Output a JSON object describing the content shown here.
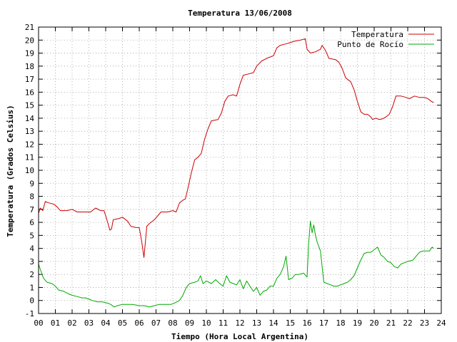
{
  "chart_data": {
    "type": "line",
    "title": "Temperatura 13/06/2008",
    "xlabel": "Tiempo (Hora Local Argentina)",
    "ylabel": "Temperatura (Grados Celsius)",
    "xlim": [
      0,
      24
    ],
    "ylim": [
      -1,
      21
    ],
    "x_ticks": [
      "00",
      "01",
      "02",
      "03",
      "04",
      "05",
      "06",
      "07",
      "08",
      "09",
      "10",
      "11",
      "12",
      "13",
      "14",
      "15",
      "16",
      "17",
      "18",
      "19",
      "20",
      "21",
      "22",
      "23",
      "24"
    ],
    "y_ticks": [
      "-1",
      "0",
      "1",
      "2",
      "3",
      "4",
      "5",
      "6",
      "7",
      "8",
      "9",
      "10",
      "11",
      "12",
      "13",
      "14",
      "15",
      "16",
      "17",
      "18",
      "19",
      "20",
      "21"
    ],
    "grid": true,
    "legend_position": "top-right",
    "series": [
      {
        "name": "Temperatura",
        "color": "#cc0000",
        "points": [
          [
            0.0,
            6.7
          ],
          [
            0.1,
            7.1
          ],
          [
            0.25,
            6.9
          ],
          [
            0.4,
            7.6
          ],
          [
            0.6,
            7.5
          ],
          [
            0.9,
            7.4
          ],
          [
            1.1,
            7.2
          ],
          [
            1.3,
            6.9
          ],
          [
            1.7,
            6.9
          ],
          [
            2.0,
            7.0
          ],
          [
            2.3,
            6.8
          ],
          [
            2.7,
            6.8
          ],
          [
            3.1,
            6.8
          ],
          [
            3.4,
            7.1
          ],
          [
            3.7,
            6.9
          ],
          [
            3.9,
            6.9
          ],
          [
            4.1,
            6.1
          ],
          [
            4.25,
            5.4
          ],
          [
            4.35,
            5.5
          ],
          [
            4.45,
            6.2
          ],
          [
            4.8,
            6.3
          ],
          [
            5.0,
            6.4
          ],
          [
            5.3,
            6.1
          ],
          [
            5.5,
            5.7
          ],
          [
            5.8,
            5.6
          ],
          [
            6.0,
            5.6
          ],
          [
            6.15,
            4.5
          ],
          [
            6.28,
            3.3
          ],
          [
            6.45,
            5.7
          ],
          [
            6.6,
            5.9
          ],
          [
            6.9,
            6.2
          ],
          [
            7.1,
            6.5
          ],
          [
            7.3,
            6.8
          ],
          [
            7.7,
            6.8
          ],
          [
            8.0,
            6.9
          ],
          [
            8.2,
            6.8
          ],
          [
            8.4,
            7.5
          ],
          [
            8.6,
            7.7
          ],
          [
            8.75,
            7.8
          ],
          [
            8.9,
            8.6
          ],
          [
            9.1,
            9.8
          ],
          [
            9.3,
            10.8
          ],
          [
            9.5,
            11.0
          ],
          [
            9.7,
            11.3
          ],
          [
            9.9,
            12.4
          ],
          [
            10.1,
            13.2
          ],
          [
            10.3,
            13.8
          ],
          [
            10.7,
            13.9
          ],
          [
            10.9,
            14.4
          ],
          [
            11.1,
            15.3
          ],
          [
            11.3,
            15.7
          ],
          [
            11.6,
            15.8
          ],
          [
            11.8,
            15.7
          ],
          [
            12.0,
            16.6
          ],
          [
            12.2,
            17.3
          ],
          [
            12.5,
            17.4
          ],
          [
            12.8,
            17.5
          ],
          [
            13.0,
            18.0
          ],
          [
            13.3,
            18.4
          ],
          [
            13.6,
            18.6
          ],
          [
            14.0,
            18.8
          ],
          [
            14.2,
            19.4
          ],
          [
            14.4,
            19.6
          ],
          [
            14.7,
            19.7
          ],
          [
            15.0,
            19.8
          ],
          [
            15.2,
            19.9
          ],
          [
            15.6,
            20.0
          ],
          [
            15.9,
            20.1
          ],
          [
            16.0,
            19.3
          ],
          [
            16.2,
            19.0
          ],
          [
            16.5,
            19.1
          ],
          [
            16.8,
            19.3
          ],
          [
            16.9,
            19.6
          ],
          [
            17.1,
            19.2
          ],
          [
            17.3,
            18.6
          ],
          [
            17.7,
            18.5
          ],
          [
            17.9,
            18.3
          ],
          [
            18.1,
            17.8
          ],
          [
            18.3,
            17.1
          ],
          [
            18.6,
            16.8
          ],
          [
            18.8,
            16.2
          ],
          [
            19.0,
            15.3
          ],
          [
            19.2,
            14.5
          ],
          [
            19.4,
            14.3
          ],
          [
            19.6,
            14.3
          ],
          [
            19.8,
            14.1
          ],
          [
            19.9,
            13.9
          ],
          [
            20.1,
            14.0
          ],
          [
            20.3,
            13.9
          ],
          [
            20.5,
            13.95
          ],
          [
            20.7,
            14.1
          ],
          [
            20.9,
            14.3
          ],
          [
            21.1,
            14.9
          ],
          [
            21.3,
            15.7
          ],
          [
            21.6,
            15.7
          ],
          [
            21.9,
            15.6
          ],
          [
            22.1,
            15.5
          ],
          [
            22.4,
            15.7
          ],
          [
            22.7,
            15.6
          ],
          [
            23.0,
            15.6
          ],
          [
            23.2,
            15.5
          ],
          [
            23.4,
            15.3
          ],
          [
            23.55,
            15.2
          ]
        ]
      },
      {
        "name": "Punto de Rocío",
        "color": "#00aa00",
        "points": [
          [
            0.0,
            2.8
          ],
          [
            0.1,
            2.4
          ],
          [
            0.3,
            1.7
          ],
          [
            0.5,
            1.4
          ],
          [
            0.8,
            1.3
          ],
          [
            1.0,
            1.1
          ],
          [
            1.2,
            0.8
          ],
          [
            1.5,
            0.7
          ],
          [
            1.8,
            0.5
          ],
          [
            2.0,
            0.4
          ],
          [
            2.3,
            0.3
          ],
          [
            2.6,
            0.2
          ],
          [
            2.8,
            0.2
          ],
          [
            3.0,
            0.1
          ],
          [
            3.2,
            0.0
          ],
          [
            3.5,
            -0.1
          ],
          [
            3.8,
            -0.1
          ],
          [
            4.1,
            -0.2
          ],
          [
            4.3,
            -0.3
          ],
          [
            4.5,
            -0.5
          ],
          [
            4.7,
            -0.4
          ],
          [
            5.0,
            -0.3
          ],
          [
            5.3,
            -0.3
          ],
          [
            5.6,
            -0.3
          ],
          [
            6.0,
            -0.4
          ],
          [
            6.3,
            -0.4
          ],
          [
            6.6,
            -0.5
          ],
          [
            6.9,
            -0.4
          ],
          [
            7.2,
            -0.3
          ],
          [
            7.6,
            -0.3
          ],
          [
            7.9,
            -0.3
          ],
          [
            8.1,
            -0.2
          ],
          [
            8.4,
            0.0
          ],
          [
            8.6,
            0.4
          ],
          [
            8.8,
            1.0
          ],
          [
            9.0,
            1.3
          ],
          [
            9.3,
            1.4
          ],
          [
            9.5,
            1.5
          ],
          [
            9.65,
            1.9
          ],
          [
            9.8,
            1.3
          ],
          [
            10.0,
            1.5
          ],
          [
            10.3,
            1.3
          ],
          [
            10.55,
            1.6
          ],
          [
            10.8,
            1.3
          ],
          [
            11.0,
            1.1
          ],
          [
            11.2,
            1.9
          ],
          [
            11.4,
            1.4
          ],
          [
            11.6,
            1.3
          ],
          [
            11.8,
            1.2
          ],
          [
            12.0,
            1.6
          ],
          [
            12.2,
            0.9
          ],
          [
            12.4,
            1.5
          ],
          [
            12.6,
            1.1
          ],
          [
            12.8,
            0.7
          ],
          [
            13.0,
            1.0
          ],
          [
            13.2,
            0.4
          ],
          [
            13.4,
            0.7
          ],
          [
            13.6,
            0.8
          ],
          [
            13.8,
            1.1
          ],
          [
            14.0,
            1.1
          ],
          [
            14.2,
            1.7
          ],
          [
            14.4,
            2.0
          ],
          [
            14.6,
            2.6
          ],
          [
            14.75,
            3.4
          ],
          [
            14.9,
            1.6
          ],
          [
            15.1,
            1.7
          ],
          [
            15.3,
            2.0
          ],
          [
            15.5,
            2.0
          ],
          [
            15.8,
            2.1
          ],
          [
            16.0,
            1.8
          ],
          [
            16.1,
            4.5
          ],
          [
            16.2,
            6.1
          ],
          [
            16.3,
            5.2
          ],
          [
            16.4,
            5.8
          ],
          [
            16.5,
            5.0
          ],
          [
            16.6,
            4.5
          ],
          [
            16.8,
            3.8
          ],
          [
            16.9,
            2.6
          ],
          [
            17.0,
            1.4
          ],
          [
            17.2,
            1.3
          ],
          [
            17.4,
            1.2
          ],
          [
            17.6,
            1.1
          ],
          [
            17.8,
            1.1
          ],
          [
            18.0,
            1.2
          ],
          [
            18.2,
            1.3
          ],
          [
            18.4,
            1.4
          ],
          [
            18.6,
            1.6
          ],
          [
            18.8,
            1.9
          ],
          [
            19.0,
            2.5
          ],
          [
            19.2,
            3.1
          ],
          [
            19.4,
            3.6
          ],
          [
            19.6,
            3.7
          ],
          [
            19.8,
            3.7
          ],
          [
            20.0,
            3.9
          ],
          [
            20.2,
            4.1
          ],
          [
            20.4,
            3.5
          ],
          [
            20.6,
            3.3
          ],
          [
            20.8,
            3.0
          ],
          [
            21.0,
            2.9
          ],
          [
            21.2,
            2.6
          ],
          [
            21.4,
            2.5
          ],
          [
            21.6,
            2.8
          ],
          [
            21.8,
            2.9
          ],
          [
            22.0,
            3.0
          ],
          [
            22.3,
            3.1
          ],
          [
            22.5,
            3.4
          ],
          [
            22.7,
            3.7
          ],
          [
            22.9,
            3.8
          ],
          [
            23.1,
            3.8
          ],
          [
            23.3,
            3.8
          ],
          [
            23.45,
            4.1
          ],
          [
            23.55,
            4.0
          ]
        ]
      }
    ]
  }
}
